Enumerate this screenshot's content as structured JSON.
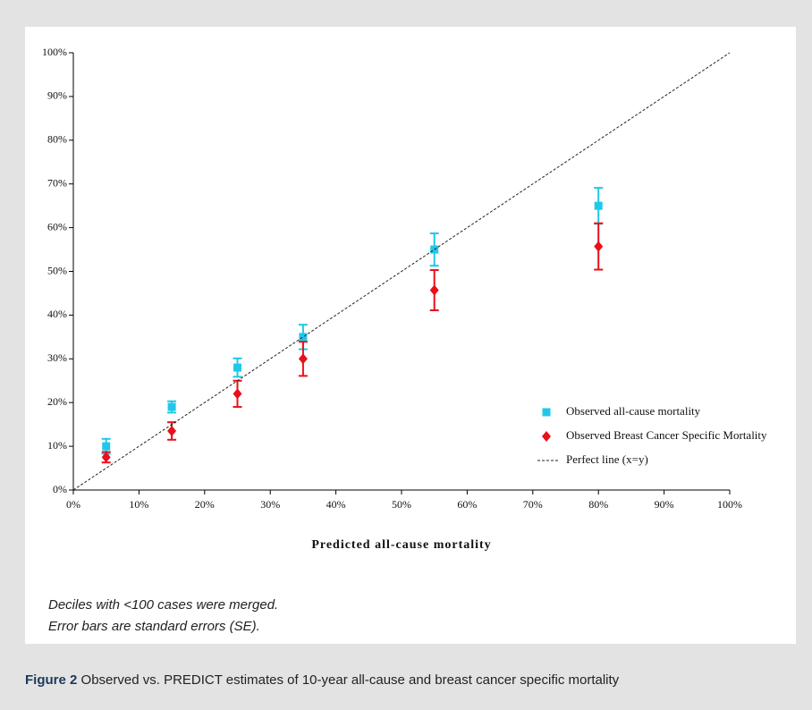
{
  "chart_data": {
    "type": "scatter",
    "xlabel": "Predicted all-cause mortality",
    "xlim": [
      0,
      100
    ],
    "ylim": [
      0,
      100
    ],
    "xticks": [
      {
        "value": 0,
        "label": "0%"
      },
      {
        "value": 10,
        "label": "10%"
      },
      {
        "value": 20,
        "label": "20%"
      },
      {
        "value": 30,
        "label": "30%"
      },
      {
        "value": 40,
        "label": "40%"
      },
      {
        "value": 50,
        "label": "50%"
      },
      {
        "value": 60,
        "label": "60%"
      },
      {
        "value": 70,
        "label": "70%"
      },
      {
        "value": 80,
        "label": "80%"
      },
      {
        "value": 90,
        "label": "90%"
      },
      {
        "value": 100,
        "label": "100%"
      }
    ],
    "yticks": [
      {
        "value": 0,
        "label": "0%"
      },
      {
        "value": 10,
        "label": "10%"
      },
      {
        "value": 20,
        "label": "20%"
      },
      {
        "value": 30,
        "label": "30%"
      },
      {
        "value": 40,
        "label": "40%"
      },
      {
        "value": 50,
        "label": "50%"
      },
      {
        "value": 60,
        "label": "60%"
      },
      {
        "value": 70,
        "label": "70%"
      },
      {
        "value": 80,
        "label": "80%"
      },
      {
        "value": 90,
        "label": "90%"
      },
      {
        "value": 100,
        "label": "100%"
      }
    ],
    "grid": false,
    "legend": "right",
    "series": [
      {
        "name": "Observed all-cause mortality",
        "color": "#1fc8e8",
        "marker": "square",
        "x": [
          5,
          15,
          25,
          35,
          55,
          80
        ],
        "values": [
          10,
          19,
          28,
          35,
          55,
          65
        ],
        "errors": [
          1.7,
          1.3,
          2.1,
          2.8,
          3.7,
          4.1
        ]
      },
      {
        "name": "Observed Breast Cancer Specific Mortality",
        "color": "#e8101a",
        "marker": "diamond",
        "x": [
          5,
          15,
          25,
          35,
          55,
          80
        ],
        "values": [
          7.5,
          13.5,
          22,
          30,
          45.7,
          55.7
        ],
        "errors": [
          1.2,
          2,
          3,
          3.9,
          4.6,
          5.3
        ]
      },
      {
        "name": "Perfect line (x=y)",
        "color": "#222222",
        "marker": "dashed-line",
        "x": [
          0,
          100
        ],
        "values": [
          0,
          100
        ]
      }
    ]
  },
  "notes": [
    "Deciles with <100 cases were merged.",
    "Error bars are standard errors (SE)."
  ],
  "caption": {
    "label": "Figure 2",
    "text": "Observed vs. PREDICT estimates of 10-year all-cause and breast cancer specific mortality"
  }
}
